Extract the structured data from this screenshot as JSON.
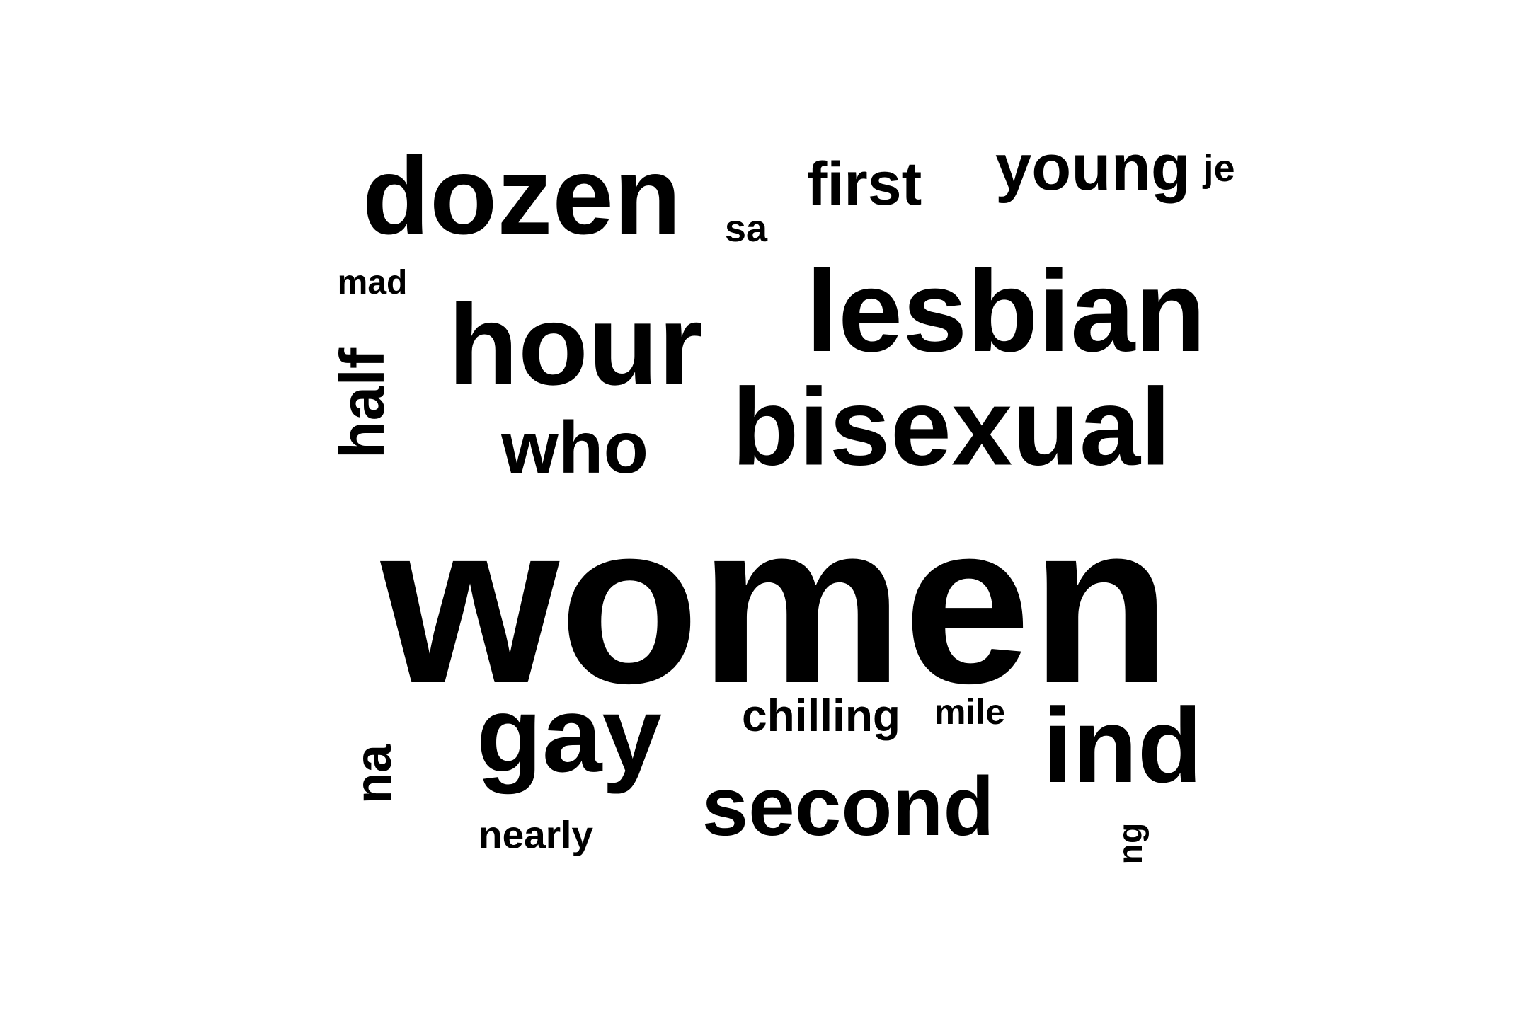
{
  "word_cloud": {
    "text_color": "#000000",
    "background_color": "#ffffff",
    "words": {
      "women": "women",
      "lesbian": "lesbian",
      "bisexual": "bisexual",
      "hour": "hour",
      "dozen": "dozen",
      "gay": "gay",
      "ind": "ind",
      "second": "second",
      "who": "who",
      "young": "young",
      "first": "first",
      "half": "half",
      "na": "na",
      "chilling": "chilling",
      "nearly": "nearly",
      "mile": "mile",
      "mad": "mad",
      "sa": "sa",
      "je": "je",
      "ng": "ng"
    }
  }
}
